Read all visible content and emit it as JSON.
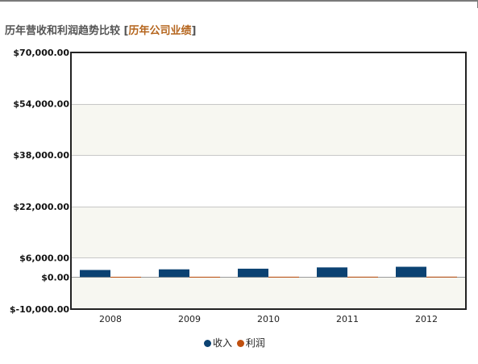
{
  "heading": {
    "title": "历年营收和利润趋势比较",
    "bracket_open": "[",
    "link": "历年公司业绩",
    "bracket_close": "]"
  },
  "colors": {
    "revenue": "#0b4272",
    "profit": "#c0500f",
    "band": "#f7f7f1",
    "grid": "#c8c8c8",
    "frame": "#222222"
  },
  "chart_data": {
    "type": "bar",
    "categories": [
      "2008",
      "2009",
      "2010",
      "2011",
      "2012"
    ],
    "series": [
      {
        "name": "收入",
        "values": [
          2200,
          2400,
          2600,
          3000,
          3200
        ]
      },
      {
        "name": "利润",
        "values": [
          80,
          90,
          100,
          110,
          120
        ]
      }
    ],
    "ylim": [
      -10000,
      70000
    ],
    "ytick_values": [
      70000,
      54000,
      38000,
      22000,
      6000,
      0,
      -10000
    ],
    "ytick_labels": [
      "$70,000.00",
      "$54,000.00",
      "$38,000.00",
      "$22,000.00",
      "$6,000.00",
      "$0.00",
      "$-10,000.00"
    ],
    "grid": true,
    "legend_position": "bottom-center"
  }
}
